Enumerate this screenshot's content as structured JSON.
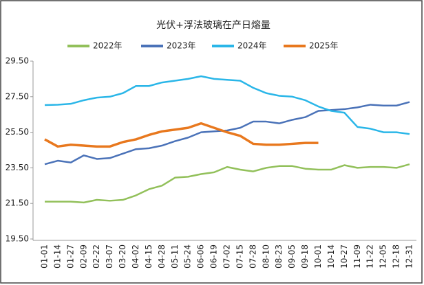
{
  "chart_data": {
    "type": "line",
    "title": "光伏+浮法玻璃在产日熔量",
    "categories": [
      "01-01",
      "01-14",
      "01-27",
      "02-09",
      "02-22",
      "03-07",
      "03-20",
      "04-02",
      "04-15",
      "04-28",
      "05-11",
      "05-24",
      "06-06",
      "06-19",
      "07-02",
      "07-15",
      "07-28",
      "08-10",
      "08-23",
      "09-05",
      "09-18",
      "10-01",
      "10-14",
      "10-27",
      "11-09",
      "11-22",
      "12-05",
      "12-18",
      "12-31"
    ],
    "series": [
      {
        "name": "2022年",
        "color": "#92c05a",
        "values": [
          21.6,
          21.6,
          21.6,
          21.55,
          21.7,
          21.65,
          21.7,
          21.95,
          22.3,
          22.5,
          22.95,
          23.0,
          23.15,
          23.25,
          23.55,
          23.4,
          23.3,
          23.5,
          23.6,
          23.6,
          23.45,
          23.4,
          23.4,
          23.65,
          23.5,
          23.55,
          23.55,
          23.5,
          23.7
        ]
      },
      {
        "name": "2023年",
        "color": "#4a72b8",
        "values": [
          23.7,
          23.9,
          23.8,
          24.2,
          24.0,
          24.05,
          24.3,
          24.55,
          24.6,
          24.75,
          25.0,
          25.2,
          25.5,
          25.55,
          25.6,
          25.75,
          26.1,
          26.1,
          26.0,
          26.2,
          26.35,
          26.7,
          26.75,
          26.8,
          26.9,
          27.05,
          27.0,
          27.0,
          27.2
        ]
      },
      {
        "name": "2024年",
        "color": "#2ab6e8",
        "values": [
          27.03,
          27.05,
          27.1,
          27.3,
          27.45,
          27.5,
          27.7,
          28.1,
          28.1,
          28.3,
          28.4,
          28.5,
          28.65,
          28.5,
          28.45,
          28.4,
          28.0,
          27.7,
          27.55,
          27.5,
          27.3,
          26.95,
          26.7,
          26.6,
          25.8,
          25.7,
          25.5,
          25.5,
          25.4
        ]
      },
      {
        "name": "2025年",
        "color": "#e8781e",
        "values": [
          25.1,
          24.7,
          24.8,
          24.75,
          24.7,
          24.7,
          24.95,
          25.1,
          25.35,
          25.55,
          25.65,
          25.75,
          26.0,
          25.75,
          25.5,
          25.3,
          24.85,
          24.8,
          24.8,
          24.85,
          24.9,
          24.9,
          null,
          null,
          null,
          null,
          null,
          null,
          null
        ]
      }
    ],
    "ylim": [
      19.5,
      29.5
    ],
    "yticks": [
      {
        "value": 19.5,
        "label": "19.50"
      },
      {
        "value": 21.5,
        "label": "21.50"
      },
      {
        "value": 23.5,
        "label": "23.50"
      },
      {
        "value": 25.5,
        "label": "25.50"
      },
      {
        "value": 27.5,
        "label": "27.50"
      },
      {
        "value": 29.5,
        "label": "29.50"
      }
    ],
    "grid": false
  }
}
